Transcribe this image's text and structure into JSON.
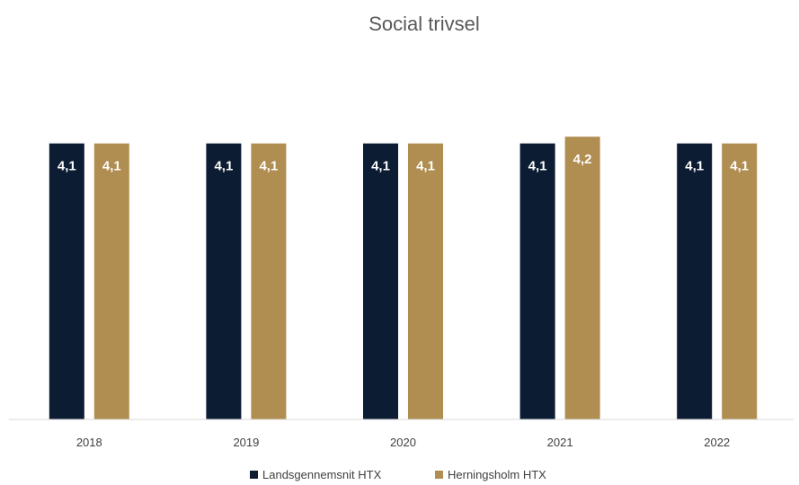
{
  "chart_data": {
    "type": "bar",
    "title": "Social trivsel",
    "xlabel": "",
    "ylabel": "",
    "categories": [
      "2018",
      "2019",
      "2020",
      "2021",
      "2022"
    ],
    "series": [
      {
        "name": "Landsgennemsnit HTX",
        "color": "#0b1c33",
        "values": [
          4.1,
          4.1,
          4.1,
          4.1,
          4.1
        ],
        "labels": [
          "4,1",
          "4,1",
          "4,1",
          "4,1",
          "4,1"
        ]
      },
      {
        "name": "Herningsholm HTX",
        "color": "#b08d50",
        "values": [
          4.1,
          4.1,
          4.1,
          4.2,
          4.1
        ],
        "labels": [
          "4,1",
          "4,1",
          "4,1",
          "4,2",
          "4,1"
        ]
      }
    ],
    "ylim": [
      0,
      5.03
    ],
    "grid": false,
    "legend": "bottom"
  }
}
